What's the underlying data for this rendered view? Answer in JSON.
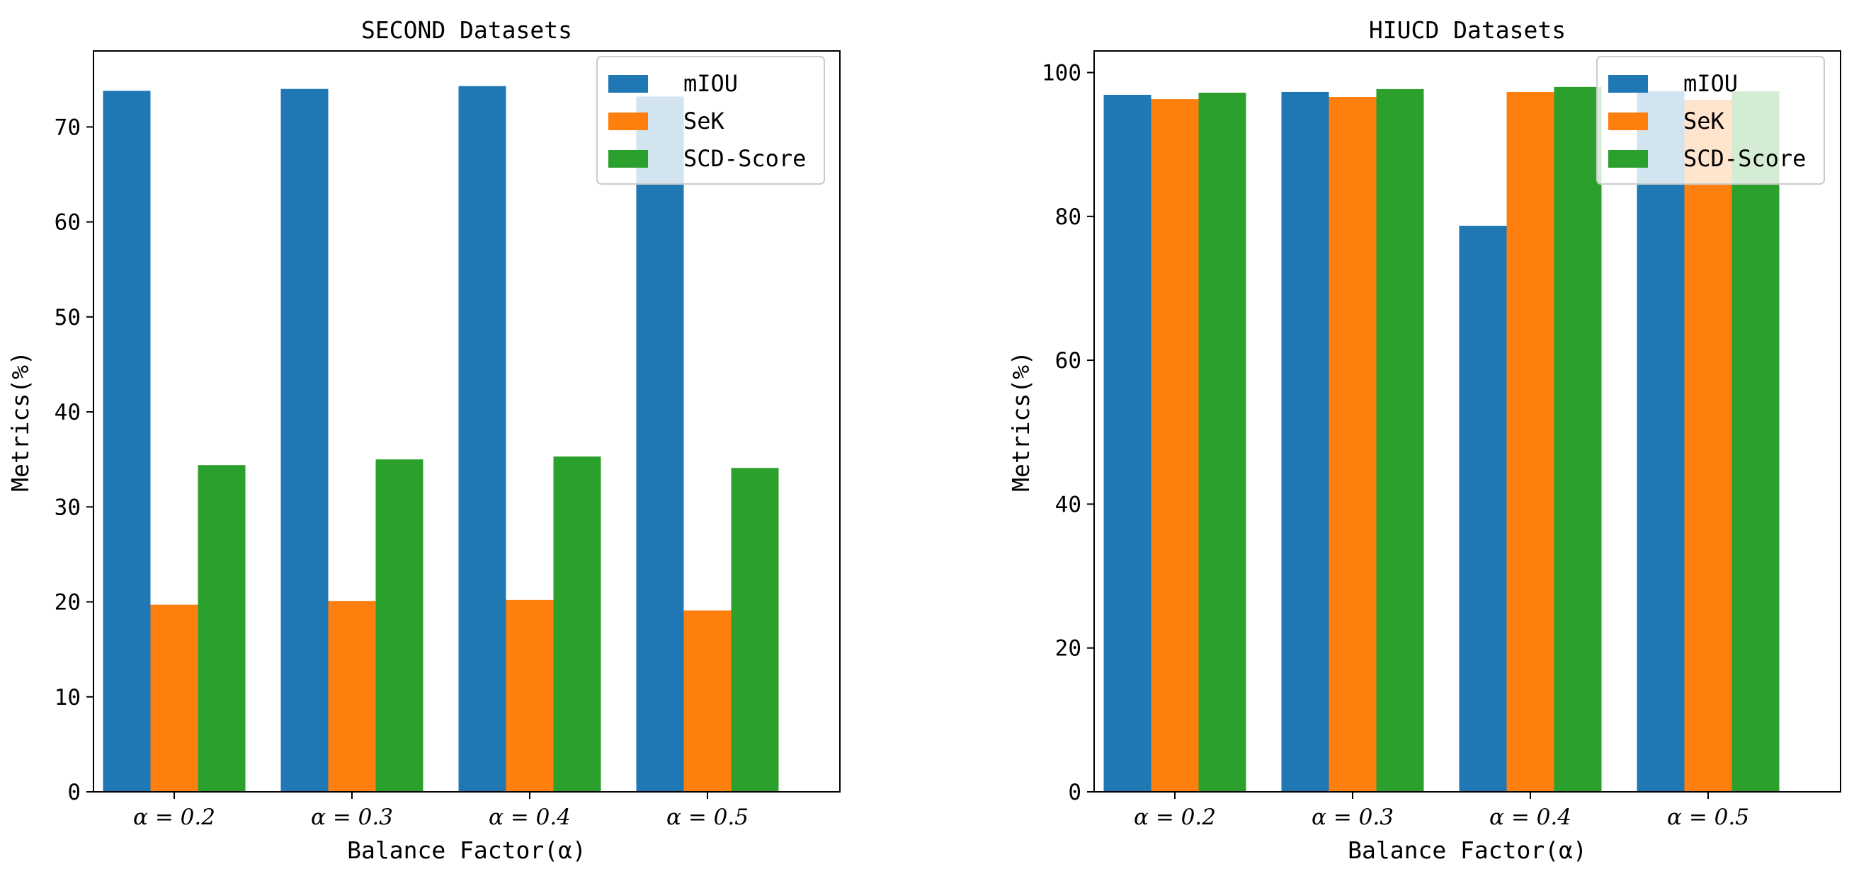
{
  "chart_data": [
    {
      "type": "bar",
      "title": "SECOND Datasets",
      "xlabel": "Balance Factor(α)",
      "ylabel": "Metrics(%)",
      "categories": [
        "α = 0.2",
        "α = 0.3",
        "α = 0.4",
        "α = 0.5"
      ],
      "ylim": [
        0,
        78
      ],
      "yticks": [
        0,
        10,
        20,
        30,
        40,
        50,
        60,
        70
      ],
      "legend_position": "top-right",
      "series": [
        {
          "name": "mIOU",
          "color": "#1f77b4",
          "values": [
            73.8,
            74.0,
            74.3,
            73.2
          ]
        },
        {
          "name": "SeK",
          "color": "#ff7f0e",
          "values": [
            19.7,
            20.1,
            20.2,
            19.1
          ]
        },
        {
          "name": "SCD-Score",
          "color": "#2ca02c",
          "values": [
            34.4,
            35.0,
            35.3,
            34.1
          ]
        }
      ]
    },
    {
      "type": "bar",
      "title": "HIUCD Datasets",
      "xlabel": "Balance Factor(α)",
      "ylabel": "Metrics(%)",
      "categories": [
        "α = 0.2",
        "α = 0.3",
        "α = 0.4",
        "α = 0.5"
      ],
      "ylim": [
        0,
        103
      ],
      "yticks": [
        0,
        20,
        40,
        60,
        80,
        100
      ],
      "legend_position": "top-right",
      "series": [
        {
          "name": "mIOU",
          "color": "#1f77b4",
          "values": [
            96.9,
            97.3,
            78.7,
            97.4
          ]
        },
        {
          "name": "SeK",
          "color": "#ff7f0e",
          "values": [
            96.3,
            96.6,
            97.3,
            96.2
          ]
        },
        {
          "name": "SCD-Score",
          "color": "#2ca02c",
          "values": [
            97.2,
            97.7,
            98.0,
            97.4
          ]
        }
      ]
    }
  ]
}
